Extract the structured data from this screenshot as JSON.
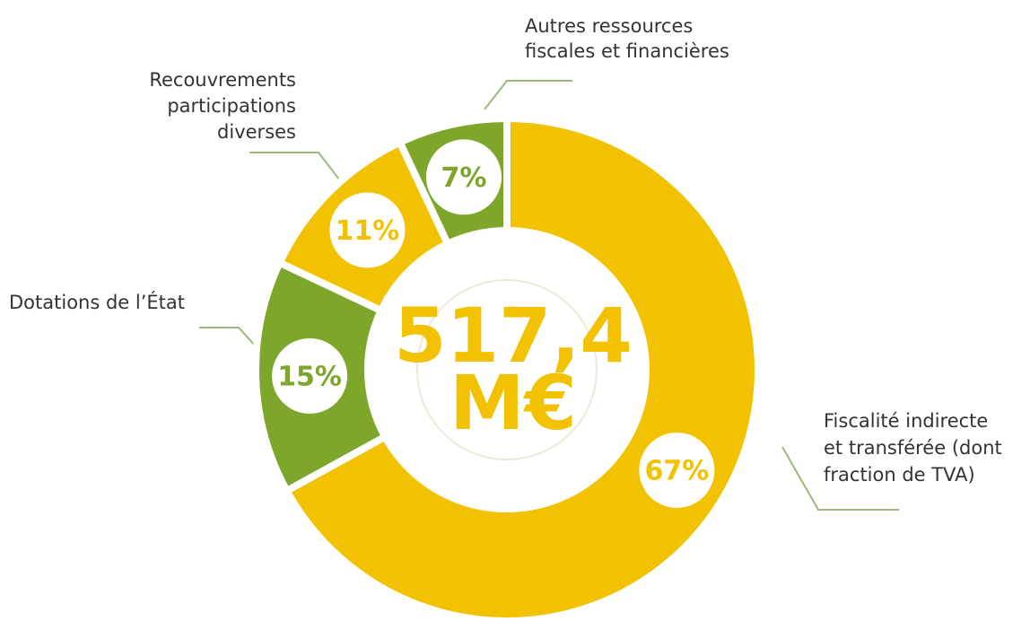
{
  "chart_data": {
    "type": "donut",
    "categories": [
      [
        "Fiscalité indirecte",
        "et transférée (dont",
        "fraction de TVA)"
      ],
      [
        "Dotations de l’État"
      ],
      [
        "Recouvrements",
        "participations",
        "diverses"
      ],
      [
        "Autres ressources",
        "fiscales et financières"
      ]
    ],
    "values": [
      67,
      15,
      11,
      7
    ],
    "value_labels": [
      "67%",
      "15%",
      "11%",
      "7%"
    ],
    "colors": [
      "#f2c200",
      "#7da62b",
      "#f2c200",
      "#7da62b"
    ],
    "center_text": [
      "517,4",
      "M€"
    ]
  }
}
